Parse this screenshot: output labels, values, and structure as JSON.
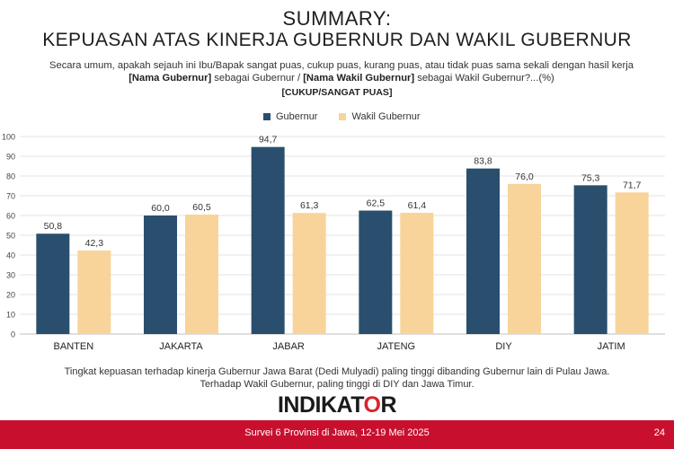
{
  "header": {
    "title_line1": "SUMMARY:",
    "title_line2": "KEPUASAN ATAS KINERJA GUBERNUR DAN WAKIL GUBERNUR",
    "question_part1": "Secara umum, apakah sejauh ini Ibu/Bapak sangat puas, cukup puas, kurang puas, atau tidak puas sama sekali dengan hasil kerja ",
    "question_bold1": "[Nama Gubernur]",
    "question_part2": " sebagai Gubernur / ",
    "question_bold2": "[Nama Wakil Gubernur]",
    "question_part3": " sebagai Wakil Gubernur?...(%)",
    "metric_label": "[CUKUP/SANGAT PUAS]"
  },
  "notes": {
    "line1": "Tingkat kepuasan terhadap kinerja Gubernur Jawa Barat (Dedi Mulyadi) paling tinggi dibanding Gubernur lain di Pulau Jawa.",
    "line2": "Terhadap Wakil Gubernur, paling tinggi di DIY dan Jawa Timur."
  },
  "logo": {
    "part1": "INDIKAT",
    "part2": "O",
    "part3": "R"
  },
  "footer": {
    "source": "Survei 6 Provinsi di Jawa, 12-19 Mei 2025",
    "page": "24"
  },
  "colors": {
    "gubernur": "#2a4f6e",
    "wakil": "#f8d49a",
    "footer": "#c8102e",
    "logo_accent": "#d9232d"
  },
  "chart_data": {
    "type": "bar",
    "categories": [
      "BANTEN",
      "JAKARTA",
      "JABAR",
      "JATENG",
      "DIY",
      "JATIM"
    ],
    "series": [
      {
        "name": "Gubernur",
        "values": [
          50.8,
          60.0,
          94.7,
          62.5,
          83.8,
          75.3
        ],
        "labels": [
          "50,8",
          "60,0",
          "94,7",
          "62,5",
          "83,8",
          "75,3"
        ]
      },
      {
        "name": "Wakil Gubernur",
        "values": [
          42.3,
          60.5,
          61.3,
          61.4,
          76.0,
          71.7
        ],
        "labels": [
          "42,3",
          "60,5",
          "61,3",
          "61,4",
          "76,0",
          "71,7"
        ]
      }
    ],
    "ylim": [
      0,
      100
    ],
    "yticks": [
      "0",
      "10",
      "20",
      "30",
      "40",
      "50",
      "60",
      "70",
      "80",
      "90",
      "100"
    ],
    "grid": true,
    "legend_position": "top-center"
  }
}
